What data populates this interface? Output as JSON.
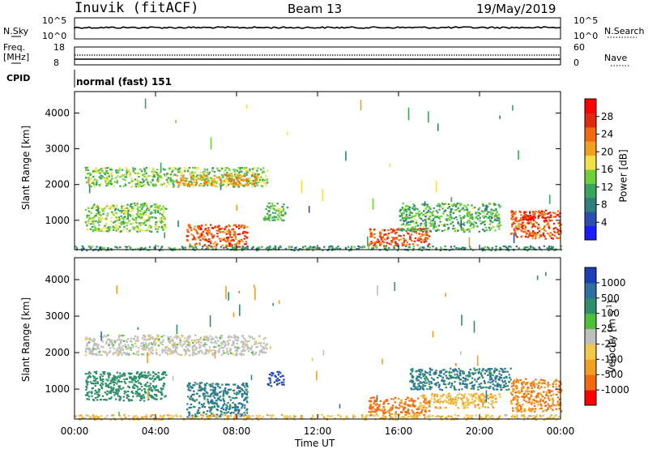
{
  "header": {
    "station": "Inuvik (fitACF)",
    "beam": "Beam 13",
    "date": "19/May/2019"
  },
  "top_panels": {
    "nsky_label": "N.Sky",
    "nsky_ticks": [
      "10^5",
      "10^0"
    ],
    "nsearch_label": "N.Search",
    "nsearch_ticks": [
      "10^5",
      "10^0"
    ],
    "freq_label": "Freq.",
    "freq_unit": "[MHz]",
    "freq_ticks": [
      "18",
      "8"
    ],
    "nave_label": "Nave",
    "nave_ticks": [
      "60",
      "0"
    ],
    "cpid_label": "CPID",
    "cpid_value": "normal (fast) 151"
  },
  "chart_data": [
    {
      "type": "heatmap",
      "name": "power",
      "ylabel": "Slant Range [km]",
      "ylim": [
        180,
        4600
      ],
      "yticks": [
        1000,
        2000,
        3000,
        4000
      ],
      "xlim_hours": [
        0,
        24
      ],
      "colorbar": {
        "label": "Power [dB]",
        "ticks": [
          "4",
          "8",
          "12",
          "16",
          "20",
          "24",
          "28"
        ],
        "colors": [
          "#1b1bff",
          "#2a4fb0",
          "#2f7f7f",
          "#3aa35c",
          "#6fcf3a",
          "#f2e04a",
          "#f0a020",
          "#f06a10",
          "#e02a10",
          "#ff0000"
        ]
      },
      "blobs": [
        {
          "t0": 0.5,
          "t1": 9.5,
          "r0": 1950,
          "r1": 2500,
          "level": 14
        },
        {
          "t0": 5.0,
          "t1": 9.0,
          "r0": 2000,
          "r1": 2300,
          "level": 20
        },
        {
          "t0": 0.5,
          "t1": 4.5,
          "r0": 700,
          "r1": 1500,
          "level": 14
        },
        {
          "t0": 5.5,
          "t1": 8.5,
          "r0": 250,
          "r1": 900,
          "level": 24
        },
        {
          "t0": 14.5,
          "t1": 17.5,
          "r0": 300,
          "r1": 800,
          "level": 24
        },
        {
          "t0": 16.0,
          "t1": 21.0,
          "r0": 700,
          "r1": 1500,
          "level": 12
        },
        {
          "t0": 21.5,
          "t1": 24.0,
          "r0": 500,
          "r1": 1300,
          "level": 24
        },
        {
          "t0": 22.0,
          "t1": 23.5,
          "r0": 1000,
          "r1": 1200,
          "level": 28
        },
        {
          "t0": 9.3,
          "t1": 10.5,
          "r0": 1000,
          "r1": 1500,
          "level": 12
        },
        {
          "t0": 0.0,
          "t1": 24.0,
          "r0": 180,
          "r1": 300,
          "level": 10
        }
      ]
    },
    {
      "type": "heatmap",
      "name": "velocity",
      "ylabel": "Slant Range [km]",
      "ylim": [
        180,
        4600
      ],
      "yticks": [
        1000,
        2000,
        3000,
        4000
      ],
      "xlim_hours": [
        0,
        24
      ],
      "xticks": [
        "00:00",
        "04:00",
        "08:00",
        "12:00",
        "16:00",
        "20:00",
        "00:00"
      ],
      "xlabel": "Time UT",
      "colorbar": {
        "label": "Velocity [m s",
        "label_sup": "-1",
        "label_end": "]",
        "ticks": [
          "1000",
          "500",
          "100",
          "25",
          "-25",
          "-100",
          "-500",
          "-1000"
        ],
        "colors": [
          "#1d3fb5",
          "#2f6fa0",
          "#2f8f6a",
          "#4fbf3a",
          "#bfbfbf",
          "#f2c84a",
          "#f0a020",
          "#f06a10",
          "#ff0000"
        ]
      },
      "blobs": [
        {
          "t0": 0.5,
          "t1": 9.5,
          "r0": 1950,
          "r1": 2500,
          "vel": 0
        },
        {
          "t0": 0.5,
          "t1": 4.5,
          "r0": 700,
          "r1": 1500,
          "vel": 100
        },
        {
          "t0": 5.5,
          "t1": 8.5,
          "r0": 250,
          "r1": 1200,
          "vel": 300
        },
        {
          "t0": 9.5,
          "t1": 10.3,
          "r0": 1100,
          "r1": 1500,
          "vel": 1000
        },
        {
          "t0": 14.5,
          "t1": 17.5,
          "r0": 300,
          "r1": 800,
          "vel": -400
        },
        {
          "t0": 16.5,
          "t1": 21.5,
          "r0": 1000,
          "r1": 1600,
          "vel": 300
        },
        {
          "t0": 17.0,
          "t1": 21.0,
          "r0": 500,
          "r1": 900,
          "vel": -60
        },
        {
          "t0": 21.5,
          "t1": 24.0,
          "r0": 400,
          "r1": 1300,
          "vel": -300
        },
        {
          "t0": 0.0,
          "t1": 24.0,
          "r0": 180,
          "r1": 320,
          "vel": -50
        }
      ]
    }
  ]
}
